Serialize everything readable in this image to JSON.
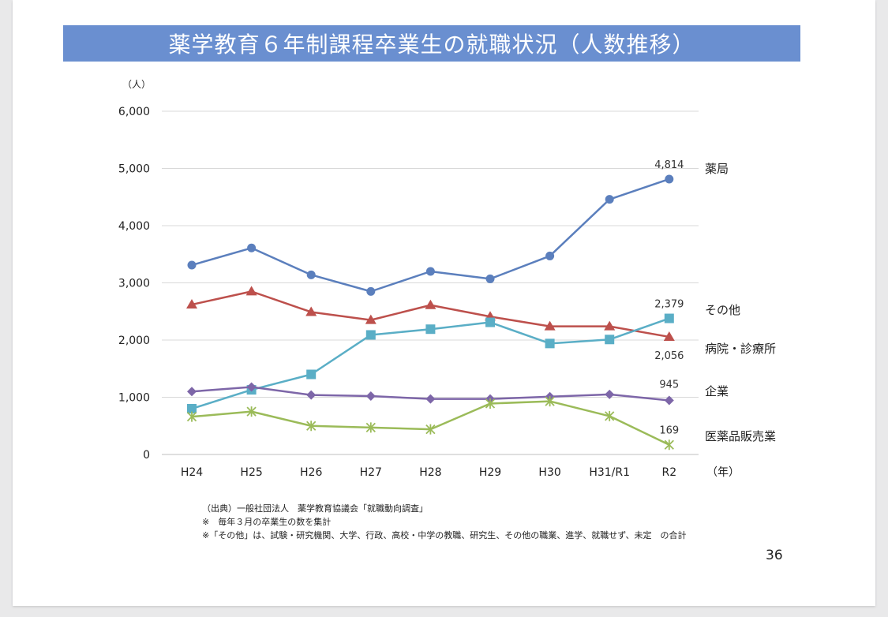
{
  "page": {
    "title": "薬学教育６年制課程卒業生の就職状況（人数推移）",
    "page_number": "36",
    "notes": [
      "（出典）一般社団法人　薬学教育協議会「就職動向調査」",
      "※　毎年３月の卒業生の数を集計",
      "※「その他」は、試験・研究機関、大学、行政、高校・中学の教職、研究生、その他の職業、進学、就職せず、未定　の合計"
    ],
    "colors": {
      "title_bar": "#6a8fd0",
      "background": "#e9e9ea"
    }
  },
  "chart_data": {
    "type": "line",
    "title": "",
    "xlabel": "（年）",
    "ylabel": "（人）",
    "ylim": [
      0,
      6000
    ],
    "yticks": [
      0,
      1000,
      2000,
      3000,
      4000,
      5000,
      6000
    ],
    "ytick_labels": [
      "0",
      "1,000",
      "2,000",
      "3,000",
      "4,000",
      "5,000",
      "6,000"
    ],
    "grid": true,
    "categories": [
      "H24",
      "H25",
      "H26",
      "H27",
      "H28",
      "H29",
      "H30",
      "H31/R1",
      "R2"
    ],
    "series": [
      {
        "name": "薬局",
        "color": "#5b7fbd",
        "marker": "circle",
        "values": [
          3310,
          3610,
          3140,
          2850,
          3200,
          3070,
          3470,
          4460,
          4814
        ],
        "end_label": "4,814"
      },
      {
        "name": "その他",
        "color": "#bd504c",
        "marker": "triangle",
        "values": [
          2620,
          2850,
          2490,
          2350,
          2610,
          2410,
          2240,
          2240,
          2056
        ],
        "end_label": "2,056"
      },
      {
        "name": "病院・診療所",
        "color": "#5aaec6",
        "marker": "square",
        "values": [
          800,
          1130,
          1400,
          2090,
          2190,
          2310,
          1940,
          2010,
          2379
        ],
        "end_label": "2,379"
      },
      {
        "name": "企業",
        "color": "#7d66a8",
        "marker": "diamond",
        "values": [
          1100,
          1180,
          1040,
          1020,
          970,
          970,
          1010,
          1050,
          945
        ],
        "end_label": "945"
      },
      {
        "name": "医薬品販売業",
        "color": "#9bbb59",
        "marker": "asterisk",
        "values": [
          660,
          750,
          500,
          470,
          440,
          890,
          930,
          670,
          169
        ],
        "end_label": "169"
      }
    ]
  }
}
